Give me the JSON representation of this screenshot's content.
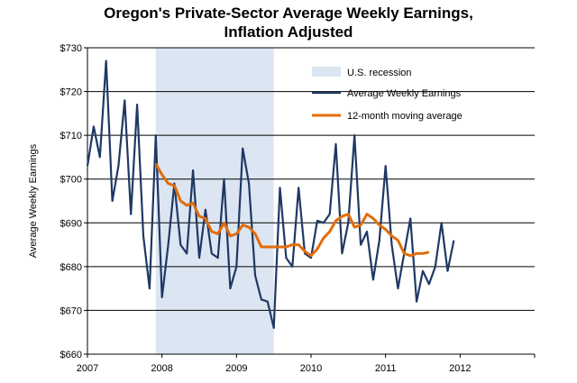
{
  "chart_data": {
    "type": "line",
    "title_line1": "Oregon's Private-Sector Average Weekly Earnings,",
    "title_line2": "Inflation Adjusted",
    "ylabel": "Average Weekly Earnings",
    "xlabel": "",
    "ylim": [
      660,
      730
    ],
    "yticks": [
      660,
      670,
      680,
      690,
      700,
      710,
      720,
      730
    ],
    "ytick_labels": [
      "$660",
      "$670",
      "$680",
      "$690",
      "$700",
      "$710",
      "$720",
      "$730"
    ],
    "xlim": [
      2007,
      2013
    ],
    "xticks": [
      2007,
      2008,
      2009,
      2010,
      2011,
      2012
    ],
    "xtick_labels": [
      "2007",
      "2008",
      "2009",
      "2010",
      "2011",
      "2012"
    ],
    "grid": "horizontal",
    "recession": {
      "name": "U.S. recession",
      "start": 2007.917,
      "end": 2009.5,
      "color": "#dce6f2"
    },
    "series": [
      {
        "name": "Average Weekly Earnings",
        "color": "#1f3864",
        "x_start": 2007.0,
        "x_step": 0.08333,
        "values": [
          703,
          712,
          705,
          727,
          695,
          703,
          718,
          692,
          717,
          687,
          675,
          710,
          673,
          685,
          699,
          685,
          683,
          702,
          682,
          693,
          683,
          682,
          700,
          675,
          680,
          707,
          699,
          678,
          672.5,
          672,
          666,
          698,
          682,
          680,
          698,
          683,
          682,
          690.5,
          690,
          692,
          708,
          683,
          690,
          710,
          685,
          688,
          677,
          686,
          703,
          685,
          675,
          683,
          691,
          672,
          679,
          676,
          680,
          690,
          679,
          686
        ]
      },
      {
        "name": "12-month moving average",
        "color": "#e36c09",
        "x_start": 2007.917,
        "x_step": 0.08333,
        "values": [
          703.5,
          701,
          699,
          698.5,
          695,
          694,
          694.5,
          691.5,
          691,
          688,
          687.5,
          690,
          687,
          687.5,
          689.5,
          689,
          687.5,
          684.5,
          684.5,
          684.5,
          684.5,
          684.5,
          685,
          685,
          683.5,
          682.5,
          684,
          686.5,
          688,
          690.5,
          691.5,
          692,
          689,
          689.5,
          692,
          691,
          689.5,
          688.5,
          687,
          686,
          683,
          682.5,
          683,
          683,
          683.3
        ]
      }
    ]
  }
}
